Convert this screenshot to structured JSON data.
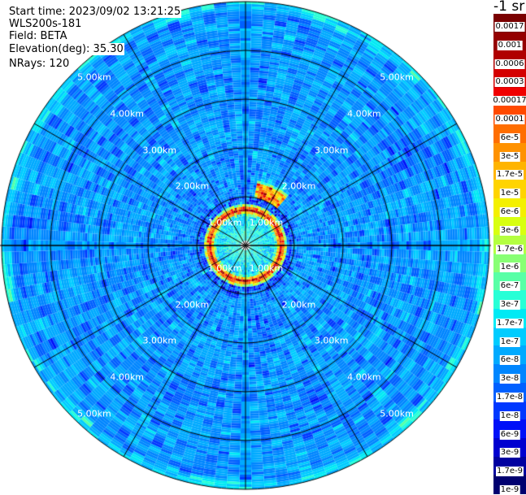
{
  "header": {
    "start_time": "Start time: 2023/09/02 13:21:25",
    "instrument": "WLS200s-181",
    "field": "Field: BETA",
    "elevation": "Elevation(deg): 35.30",
    "nrays": "NRays: 120"
  },
  "chart_data": {
    "type": "heatmap",
    "projection": "polar-ppi",
    "field": "BETA",
    "units": "-1 sr",
    "nrays": 120,
    "elevation_deg": 35.3,
    "range_rings_km": [
      1,
      2,
      3,
      4,
      5
    ],
    "range_ring_labels": [
      "1.00km",
      "2.00km",
      "3.00km",
      "4.00km",
      "5.00km"
    ],
    "spokes_deg": [
      0,
      30,
      60,
      90,
      120,
      150,
      180,
      210,
      240,
      270,
      300,
      330
    ],
    "max_range_km": 5.0,
    "colorbar": {
      "title": "-1 sr",
      "labels": [
        "0.0017",
        "0.001",
        "0.0006",
        "0.0003",
        "0.00017",
        "0.0001",
        "6e-5",
        "3e-5",
        "1.7e-5",
        "1e-5",
        "6e-6",
        "3e-6",
        "1.7e-6",
        "1e-6",
        "6e-7",
        "3e-7",
        "1.7e-7",
        "1e-7",
        "6e-8",
        "3e-8",
        "1.7e-8",
        "1e-8",
        "6e-9",
        "3e-9",
        "1.7e-9",
        "1e-9"
      ],
      "values": [
        0.0017,
        0.001,
        0.0006,
        0.0003,
        0.00017,
        0.0001,
        6e-05,
        3e-05,
        1.7e-05,
        1e-05,
        6e-06,
        3e-06,
        1.7e-06,
        1e-06,
        6e-07,
        3e-07,
        1.7e-07,
        1e-07,
        6e-08,
        3e-08,
        1.7e-08,
        1e-08,
        6e-09,
        3e-09,
        1.7e-09,
        1e-09
      ],
      "colors": [
        "#7a0000",
        "#940000",
        "#b00000",
        "#d40000",
        "#f00000",
        "#ff4a00",
        "#ff6e00",
        "#ff9200",
        "#ffb400",
        "#ffd400",
        "#f4f000",
        "#d8ff10",
        "#b4ff40",
        "#88ff74",
        "#58ffa6",
        "#28ffd6",
        "#00eaf4",
        "#00ccff",
        "#00aaff",
        "#0086ff",
        "#0060ff",
        "#0038ff",
        "#0010f8",
        "#0000d0",
        "#0000a0",
        "#000070"
      ]
    },
    "features": [
      {
        "description_value": "near-field annulus",
        "range_km": [
          0.62,
          0.8
        ],
        "log10_beta": -4.0
      },
      {
        "description_value": "inner region",
        "range_km": [
          0.1,
          0.6
        ],
        "log10_beta": -6.8
      },
      {
        "description_value": "background",
        "range_km": [
          0.8,
          5.0
        ],
        "log10_beta": -7.6
      },
      {
        "description_value": "cloud patch NNE",
        "azimuth_deg": [
          10,
          40
        ],
        "range_km": [
          1.0,
          1.25
        ],
        "log10_beta": -4.4
      }
    ]
  }
}
